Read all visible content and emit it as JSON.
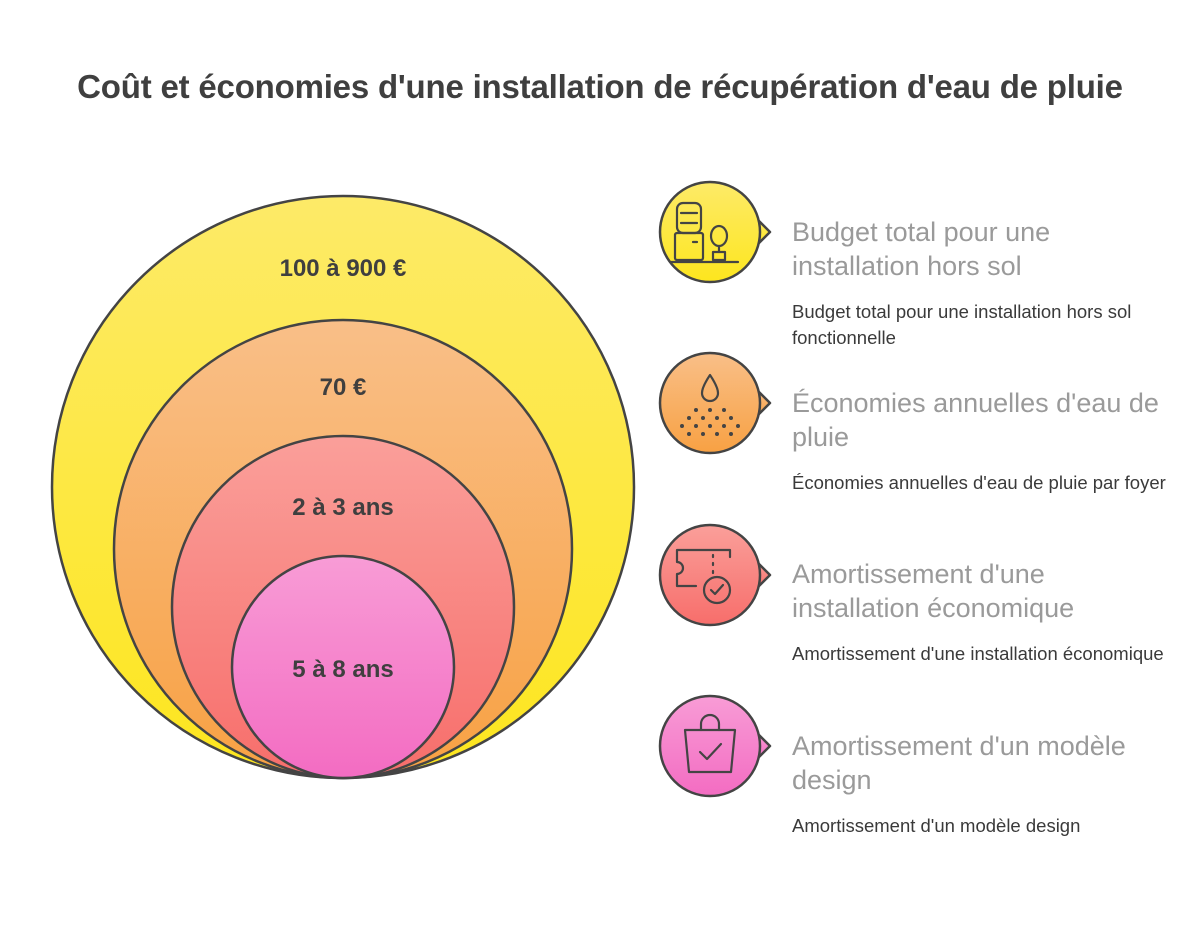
{
  "title": "Coût et économies d'une installation de récupération d'eau de pluie",
  "colors": {
    "outline": "#444444",
    "text_dark": "#3f3f3f",
    "heading_gray": "#9a9a9a",
    "yellow": "#fde74c",
    "orange": "#f8a75a",
    "red": "#f77d7d",
    "pink": "#f47dc8"
  },
  "circles": [
    {
      "label": "100 à 900 €"
    },
    {
      "label": "70 €"
    },
    {
      "label": "2 à 3 ans"
    },
    {
      "label": "5 à 8 ans"
    }
  ],
  "items": [
    {
      "icon": "water-cooler-plant-icon",
      "heading": "Budget total pour une installation hors sol",
      "description": "Budget total pour une installation hors sol fonctionnelle"
    },
    {
      "icon": "water-drop-rain-icon",
      "heading": "Économies annuelles d'eau de pluie",
      "description": "Économies annuelles d'eau de pluie par foyer"
    },
    {
      "icon": "ticket-check-icon",
      "heading": "Amortissement d'une installation économique",
      "description": "Amortissement d'une installation économique"
    },
    {
      "icon": "shopping-bag-check-icon",
      "heading": "Amortissement d'un modèle design",
      "description": "Amortissement d'un modèle design"
    }
  ]
}
